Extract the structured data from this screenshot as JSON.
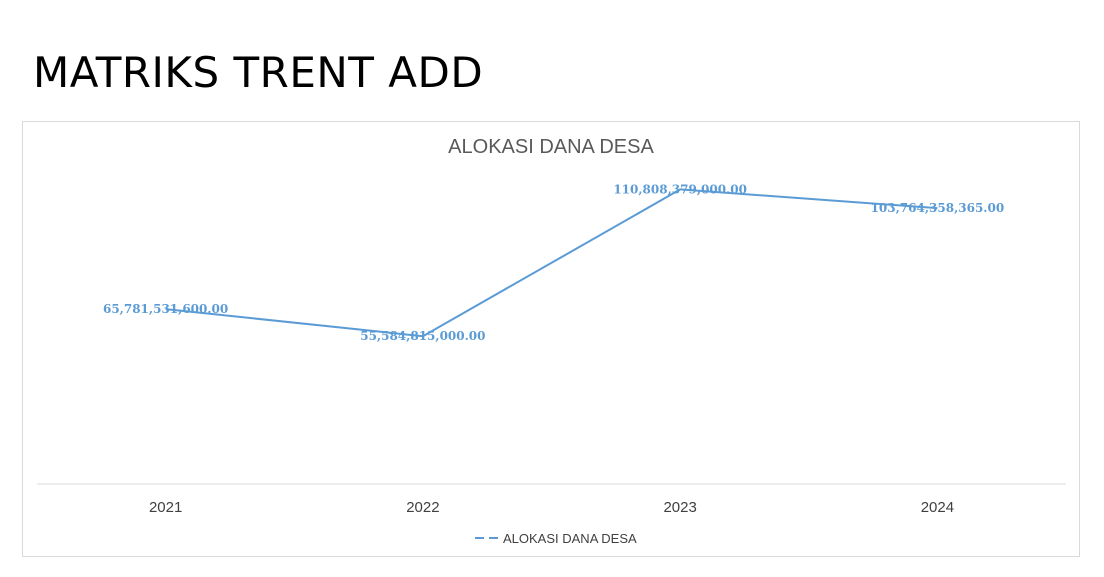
{
  "slide": {
    "title": "MATRIKS TRENT ADD"
  },
  "chart_data": {
    "type": "line",
    "title": "ALOKASI DANA DESA",
    "categories": [
      "2021",
      "2022",
      "2023",
      "2024"
    ],
    "series": [
      {
        "name": "ALOKASI DANA DESA",
        "values": [
          65781531600.0,
          55584815000.0,
          110808379000.0,
          103764358365.0
        ],
        "labels": [
          "65,781,531,600.00",
          "55,584,815,000.00",
          "110,808,379,000.00",
          "103,764,358,365.00"
        ],
        "color": "#5b9bd5"
      }
    ],
    "xlabel": "",
    "ylabel": "",
    "ylim": [
      0,
      120000000000
    ],
    "grid": false,
    "legend": "bottom"
  },
  "colors": {
    "series": "#5b9bd5",
    "label": "#5b9bd5",
    "axis_text": "#404040",
    "title_text": "#595959"
  }
}
